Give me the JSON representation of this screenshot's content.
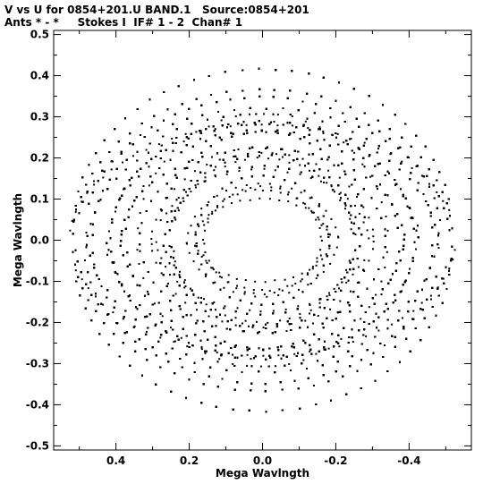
{
  "header": {
    "line1": "V vs U for 0854+201.U BAND.1   Source:0854+201",
    "line2": "Ants * - *     Stokes I  IF# 1 - 2  Chan# 1"
  },
  "chart_data": {
    "type": "scatter",
    "title": "V vs U for 0854+201.U BAND.1   Source:0854+201",
    "subtitle": "Ants * - *     Stokes I  IF# 1 - 2  Chan# 1",
    "xlabel": "Mega Wavlngth",
    "ylabel": "Mega Wavlngth",
    "xlim": [
      0.57,
      -0.57
    ],
    "ylim": [
      -0.51,
      0.51
    ],
    "x_reversed": true,
    "x_ticks": [
      0.4,
      0.2,
      0.0,
      -0.2,
      -0.4
    ],
    "x_tick_labels": [
      "0.4",
      "0.2",
      "0.0",
      "-0.2",
      "-0.4"
    ],
    "y_ticks": [
      0.5,
      0.4,
      0.3,
      0.2,
      0.1,
      0.0,
      -0.1,
      -0.2,
      -0.3,
      -0.4,
      -0.5
    ],
    "y_tick_labels": [
      "0.5",
      "0.4",
      "0.3",
      "0.2",
      "0.1",
      "0.0",
      "-0.1",
      "-0.2",
      "-0.3",
      "-0.4",
      "-0.5"
    ],
    "grid": false,
    "marker_color": "#000000",
    "note_points": "uv-coverage tracks; point-symmetric about origin, dense core near (0,0)"
  }
}
